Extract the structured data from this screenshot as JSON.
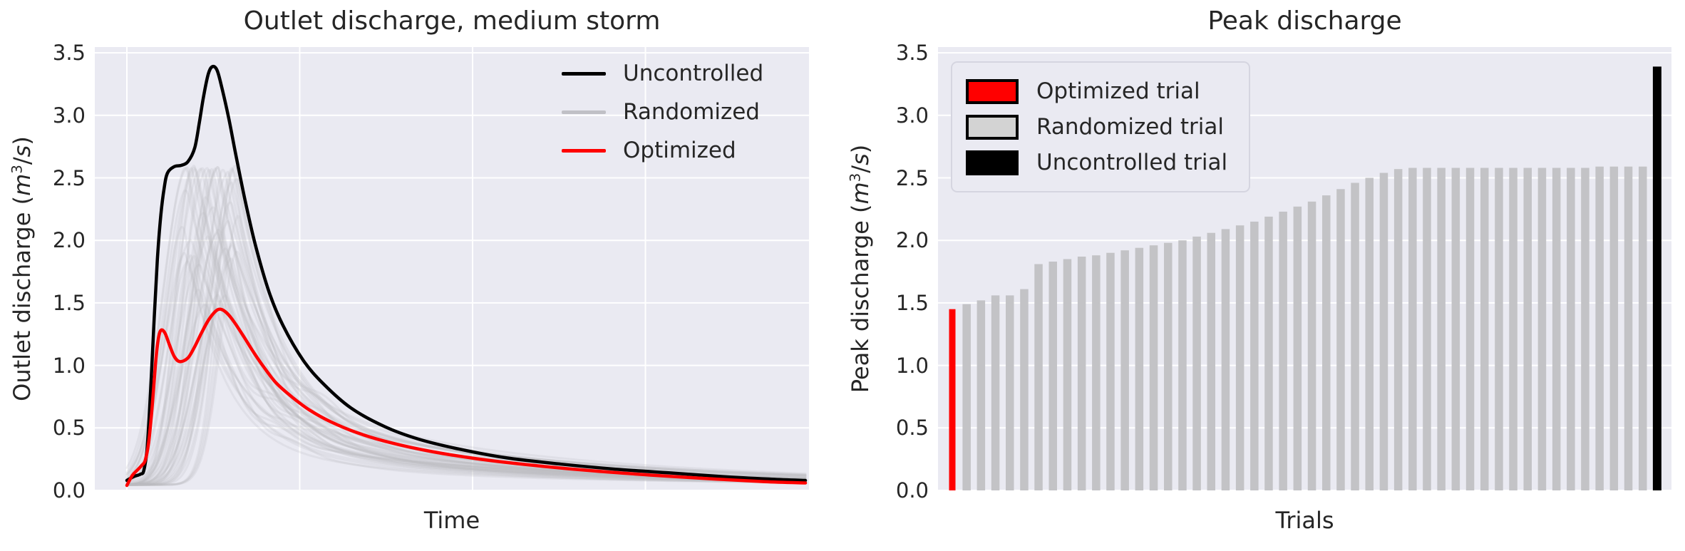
{
  "colors": {
    "figure_bg": "#ffffff",
    "axes_bg": "#eaeaf2",
    "grid": "#ffffff",
    "text": "#262626",
    "uncontrolled": "#000000",
    "optimized": "#ff0000",
    "randomized_line": "#c0c0c6",
    "randomized_bar": "#c3c3c6",
    "randomized_patch": "#d3d3d3"
  },
  "left_chart": {
    "title": "Outlet discharge, medium storm",
    "xlabel": "Time",
    "ylabel": "Outlet discharge (m³/s)",
    "ylabel_parts": {
      "prefix": "Outlet discharge (",
      "m": "m",
      "exp": "3",
      "slash": "/",
      "s": "s",
      "suffix": ")"
    },
    "yticks": [
      "3.5",
      "3.0",
      "2.5",
      "2.0",
      "1.5",
      "1.0",
      "0.5",
      "0.0"
    ],
    "legend": [
      {
        "label": "Uncontrolled",
        "color": "#000000"
      },
      {
        "label": "Randomized",
        "color": "#c0c0c6"
      },
      {
        "label": "Optimized",
        "color": "#ff0000"
      }
    ]
  },
  "right_chart": {
    "title": "Peak discharge",
    "xlabel": "Trials",
    "ylabel": "Peak discharge (m³/s)",
    "ylabel_parts": {
      "prefix": "Peak discharge (",
      "m": "m",
      "exp": "3",
      "slash": "/",
      "s": "s",
      "suffix": ")"
    },
    "yticks": [
      "3.5",
      "3.0",
      "2.5",
      "2.0",
      "1.5",
      "1.0",
      "0.5",
      "0.0"
    ],
    "legend": [
      {
        "label": "Optimized trial",
        "color": "#ff0000"
      },
      {
        "label": "Randomized trial",
        "color": "#d3d3d3"
      },
      {
        "label": "Uncontrolled trial",
        "color": "#000000"
      }
    ]
  },
  "chart_data": [
    {
      "type": "line",
      "title": "Outlet discharge, medium storm",
      "xlabel": "Time",
      "ylabel": "Outlet discharge (m³/s)",
      "ylim": [
        0,
        3.55
      ],
      "x_range": [
        0,
        1
      ],
      "grid": true,
      "legend_position": "upper right",
      "series": [
        {
          "name": "Uncontrolled",
          "color": "#000000",
          "points": [
            [
              0,
              0.08
            ],
            [
              0.01,
              0.11
            ],
            [
              0.02,
              0.13
            ],
            [
              0.025,
              0.16
            ],
            [
              0.03,
              0.35
            ],
            [
              0.035,
              0.8
            ],
            [
              0.04,
              1.35
            ],
            [
              0.045,
              1.85
            ],
            [
              0.05,
              2.2
            ],
            [
              0.055,
              2.42
            ],
            [
              0.06,
              2.54
            ],
            [
              0.07,
              2.59
            ],
            [
              0.08,
              2.6
            ],
            [
              0.09,
              2.63
            ],
            [
              0.1,
              2.74
            ],
            [
              0.107,
              2.95
            ],
            [
              0.113,
              3.15
            ],
            [
              0.12,
              3.33
            ],
            [
              0.126,
              3.39
            ],
            [
              0.133,
              3.36
            ],
            [
              0.14,
              3.22
            ],
            [
              0.15,
              2.98
            ],
            [
              0.16,
              2.7
            ],
            [
              0.175,
              2.3
            ],
            [
              0.19,
              1.95
            ],
            [
              0.21,
              1.58
            ],
            [
              0.23,
              1.32
            ],
            [
              0.26,
              1.04
            ],
            [
              0.29,
              0.85
            ],
            [
              0.33,
              0.66
            ],
            [
              0.38,
              0.51
            ],
            [
              0.43,
              0.41
            ],
            [
              0.49,
              0.33
            ],
            [
              0.56,
              0.26
            ],
            [
              0.64,
              0.21
            ],
            [
              0.72,
              0.17
            ],
            [
              0.8,
              0.14
            ],
            [
              0.88,
              0.11
            ],
            [
              0.95,
              0.09
            ],
            [
              1,
              0.08
            ]
          ]
        },
        {
          "name": "Optimized",
          "color": "#ff0000",
          "points": [
            [
              0,
              0.04
            ],
            [
              0.008,
              0.12
            ],
            [
              0.015,
              0.16
            ],
            [
              0.022,
              0.2
            ],
            [
              0.027,
              0.24
            ],
            [
              0.032,
              0.38
            ],
            [
              0.037,
              0.65
            ],
            [
              0.042,
              1.0
            ],
            [
              0.046,
              1.2
            ],
            [
              0.05,
              1.28
            ],
            [
              0.056,
              1.26
            ],
            [
              0.063,
              1.16
            ],
            [
              0.07,
              1.07
            ],
            [
              0.078,
              1.03
            ],
            [
              0.09,
              1.06
            ],
            [
              0.1,
              1.15
            ],
            [
              0.11,
              1.26
            ],
            [
              0.12,
              1.36
            ],
            [
              0.13,
              1.43
            ],
            [
              0.137,
              1.45
            ],
            [
              0.145,
              1.43
            ],
            [
              0.155,
              1.37
            ],
            [
              0.17,
              1.25
            ],
            [
              0.185,
              1.12
            ],
            [
              0.2,
              1.0
            ],
            [
              0.22,
              0.86
            ],
            [
              0.245,
              0.74
            ],
            [
              0.27,
              0.64
            ],
            [
              0.3,
              0.55
            ],
            [
              0.34,
              0.46
            ],
            [
              0.39,
              0.38
            ],
            [
              0.45,
              0.31
            ],
            [
              0.52,
              0.25
            ],
            [
              0.6,
              0.2
            ],
            [
              0.69,
              0.155
            ],
            [
              0.78,
              0.12
            ],
            [
              0.87,
              0.09
            ],
            [
              0.94,
              0.07
            ],
            [
              1,
              0.06
            ]
          ]
        },
        {
          "name": "Randomized",
          "color": "#c0c0c6",
          "count": 48,
          "peak_range": [
            1.49,
            2.59
          ],
          "peak_time_range": [
            0.07,
            0.17
          ],
          "note": "48 light-gray trial hydrographs; their peak values equal the sorted randomized bars in the right chart"
        }
      ]
    },
    {
      "type": "bar",
      "title": "Peak discharge",
      "xlabel": "Trials",
      "ylabel": "Peak discharge (m³/s)",
      "ylim": [
        0,
        3.55
      ],
      "grid": true,
      "legend_position": "upper left",
      "optimized": 1.45,
      "randomized": [
        1.49,
        1.52,
        1.56,
        1.56,
        1.61,
        1.81,
        1.83,
        1.85,
        1.87,
        1.88,
        1.9,
        1.92,
        1.94,
        1.96,
        1.98,
        2.0,
        2.03,
        2.06,
        2.09,
        2.12,
        2.15,
        2.19,
        2.23,
        2.27,
        2.31,
        2.36,
        2.41,
        2.46,
        2.5,
        2.54,
        2.57,
        2.58,
        2.58,
        2.58,
        2.58,
        2.58,
        2.58,
        2.58,
        2.58,
        2.58,
        2.58,
        2.58,
        2.58,
        2.58,
        2.59,
        2.59,
        2.59,
        2.59
      ],
      "uncontrolled": 3.39
    }
  ]
}
